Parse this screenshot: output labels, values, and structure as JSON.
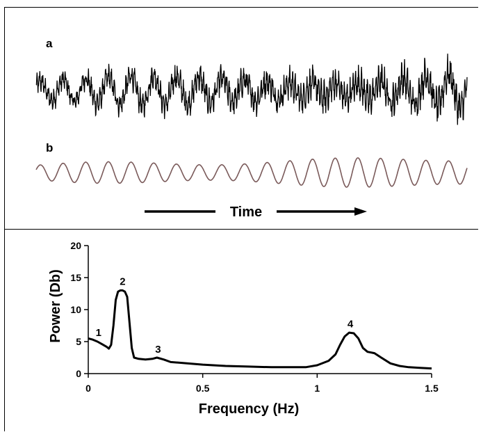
{
  "figure": {
    "panel_a_label": "a",
    "panel_b_label": "b",
    "time_label": "Time"
  },
  "chart_data": [
    {
      "type": "line",
      "panel": "a",
      "description_x": "Time",
      "series": [
        {
          "name": "",
          "color": "#000000",
          "envelope": {
            "slow_cycles": 19,
            "fast_cycles": 150,
            "noise": "high"
          }
        }
      ]
    },
    {
      "type": "line",
      "panel": "b",
      "series": [
        {
          "name": "",
          "color": "#7a5a5a",
          "envelope": {
            "slow_cycles": 19,
            "noise": "none"
          }
        }
      ]
    },
    {
      "type": "line",
      "panel": "spectrum",
      "title": "",
      "xlabel": "Frequency (Hz)",
      "ylabel": "Power (Db)",
      "xlim": [
        0,
        1.5
      ],
      "ylim": [
        0,
        20
      ],
      "xticks": [
        0,
        0.5,
        1,
        1.5
      ],
      "xtick_labels": [
        "0",
        "0.5",
        "1",
        "1.5"
      ],
      "yticks": [
        0,
        5,
        10,
        15,
        20
      ],
      "ytick_labels": [
        "0",
        "5",
        "10",
        "15",
        "20"
      ],
      "grid": false,
      "series": [
        {
          "name": "",
          "color": "#000000",
          "x": [
            0,
            0.02,
            0.04,
            0.06,
            0.08,
            0.09,
            0.1,
            0.11,
            0.12,
            0.13,
            0.14,
            0.15,
            0.16,
            0.17,
            0.18,
            0.19,
            0.2,
            0.22,
            0.25,
            0.28,
            0.3,
            0.33,
            0.36,
            0.4,
            0.5,
            0.6,
            0.7,
            0.8,
            0.9,
            0.95,
            1.0,
            1.05,
            1.08,
            1.1,
            1.12,
            1.14,
            1.16,
            1.18,
            1.2,
            1.22,
            1.25,
            1.28,
            1.32,
            1.36,
            1.4,
            1.45,
            1.5
          ],
          "y": [
            5.5,
            5.3,
            5.0,
            4.6,
            4.2,
            3.9,
            4.5,
            7.5,
            11.5,
            12.8,
            13.0,
            13.0,
            12.8,
            12.0,
            8.0,
            4.0,
            2.5,
            2.3,
            2.2,
            2.3,
            2.5,
            2.2,
            1.8,
            1.7,
            1.4,
            1.2,
            1.1,
            1.0,
            1.0,
            1.0,
            1.3,
            2.0,
            3.0,
            4.5,
            5.8,
            6.4,
            6.3,
            5.5,
            4.0,
            3.4,
            3.2,
            2.5,
            1.6,
            1.2,
            1.0,
            0.9,
            0.8
          ]
        }
      ],
      "annotations": [
        {
          "text": "1",
          "x": 0.045,
          "y": 5.2
        },
        {
          "text": "2",
          "x": 0.15,
          "y": 13.2
        },
        {
          "text": "3",
          "x": 0.305,
          "y": 2.6
        },
        {
          "text": "4",
          "x": 1.145,
          "y": 6.6
        }
      ]
    }
  ]
}
